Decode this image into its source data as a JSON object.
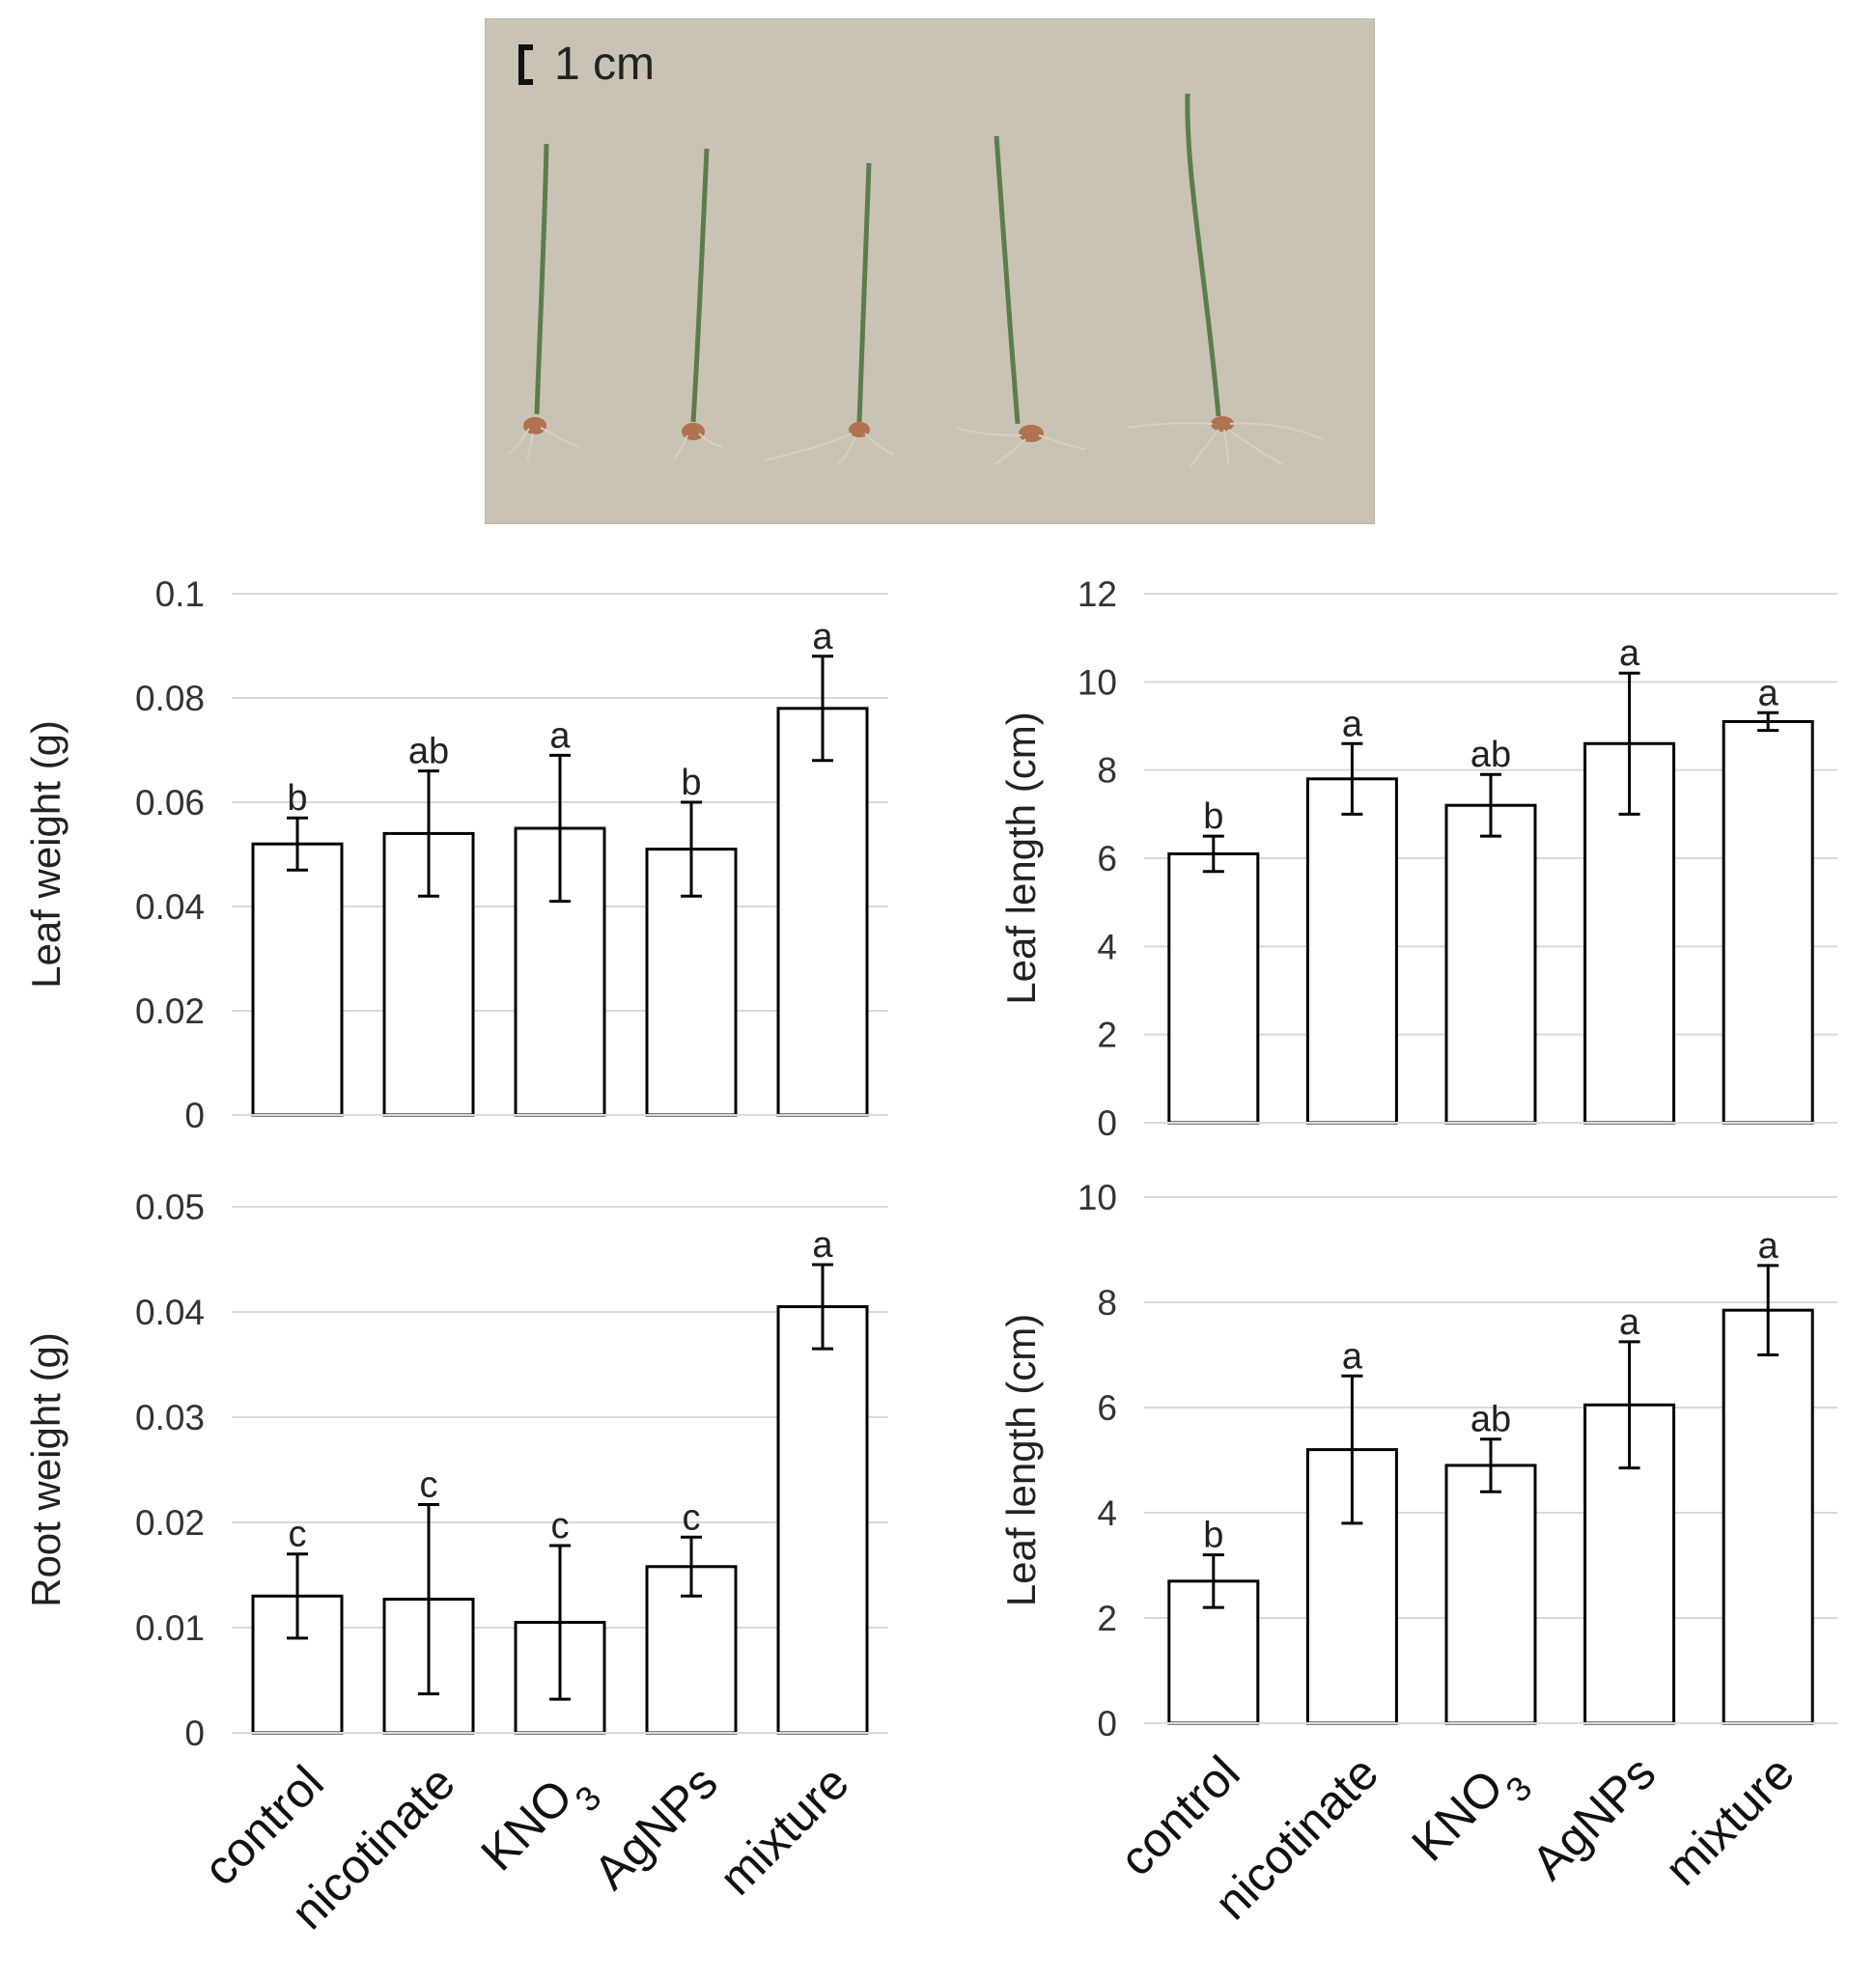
{
  "photo": {
    "scale_bar_label": "1 cm",
    "background_color": "#c9c3b5",
    "seedlings": [
      "control",
      "nicotinate",
      "KNO3",
      "AgNPs",
      "mixture"
    ]
  },
  "x_categories": [
    "control",
    "nicotinate",
    "KNO",
    "AgNPs",
    "mixture"
  ],
  "x_category_subscripts": [
    "",
    "",
    "3",
    "",
    ""
  ],
  "chart_data": [
    {
      "type": "bar",
      "ylabel": "Leaf weight (g)",
      "categories": [
        "control",
        "nicotinate",
        "KNO3",
        "AgNPs",
        "mixture"
      ],
      "values": [
        0.052,
        0.054,
        0.055,
        0.051,
        0.078
      ],
      "errors": [
        0.005,
        0.012,
        0.014,
        0.009,
        0.01
      ],
      "significance": [
        "b",
        "ab",
        "a",
        "b",
        "a"
      ],
      "ylim": [
        0,
        0.1
      ],
      "yticks": [
        "0",
        "0.02",
        "0.04",
        "0.06",
        "0.08",
        "0.1"
      ],
      "grid": true
    },
    {
      "type": "bar",
      "ylabel": "Leaf length (cm)",
      "categories": [
        "control",
        "nicotinate",
        "KNO3",
        "AgNPs",
        "mixture"
      ],
      "values": [
        6.1,
        7.8,
        7.2,
        8.6,
        9.1
      ],
      "errors": [
        0.4,
        0.8,
        0.7,
        1.6,
        0.2
      ],
      "significance": [
        "b",
        "a",
        "ab",
        "a",
        "a"
      ],
      "ylim": [
        0,
        12
      ],
      "yticks": [
        "0",
        "2",
        "4",
        "6",
        "8",
        "10",
        "12"
      ],
      "grid": true
    },
    {
      "type": "bar",
      "ylabel": "Root weight (g)",
      "categories": [
        "control",
        "nicotinate",
        "KNO3",
        "AgNPs",
        "mixture"
      ],
      "values": [
        0.013,
        0.0127,
        0.0105,
        0.0158,
        0.0405
      ],
      "errors": [
        0.004,
        0.009,
        0.0073,
        0.0028,
        0.004
      ],
      "significance": [
        "c",
        "c",
        "c",
        "c",
        "a"
      ],
      "ylim": [
        0,
        0.05
      ],
      "yticks": [
        "0",
        "0.01",
        "0.02",
        "0.03",
        "0.04",
        "0.05"
      ],
      "grid": true
    },
    {
      "type": "bar",
      "ylabel": "Leaf length (cm)",
      "categories": [
        "control",
        "nicotinate",
        "KNO3",
        "AgNPs",
        "mixture"
      ],
      "values": [
        2.7,
        5.2,
        4.9,
        6.05,
        7.85
      ],
      "errors": [
        0.5,
        1.4,
        0.5,
        1.2,
        0.85
      ],
      "significance": [
        "b",
        "a",
        "ab",
        "a",
        "a"
      ],
      "ylim": [
        0,
        10
      ],
      "yticks": [
        "0",
        "2",
        "4",
        "6",
        "8",
        "10"
      ],
      "grid": true
    }
  ]
}
